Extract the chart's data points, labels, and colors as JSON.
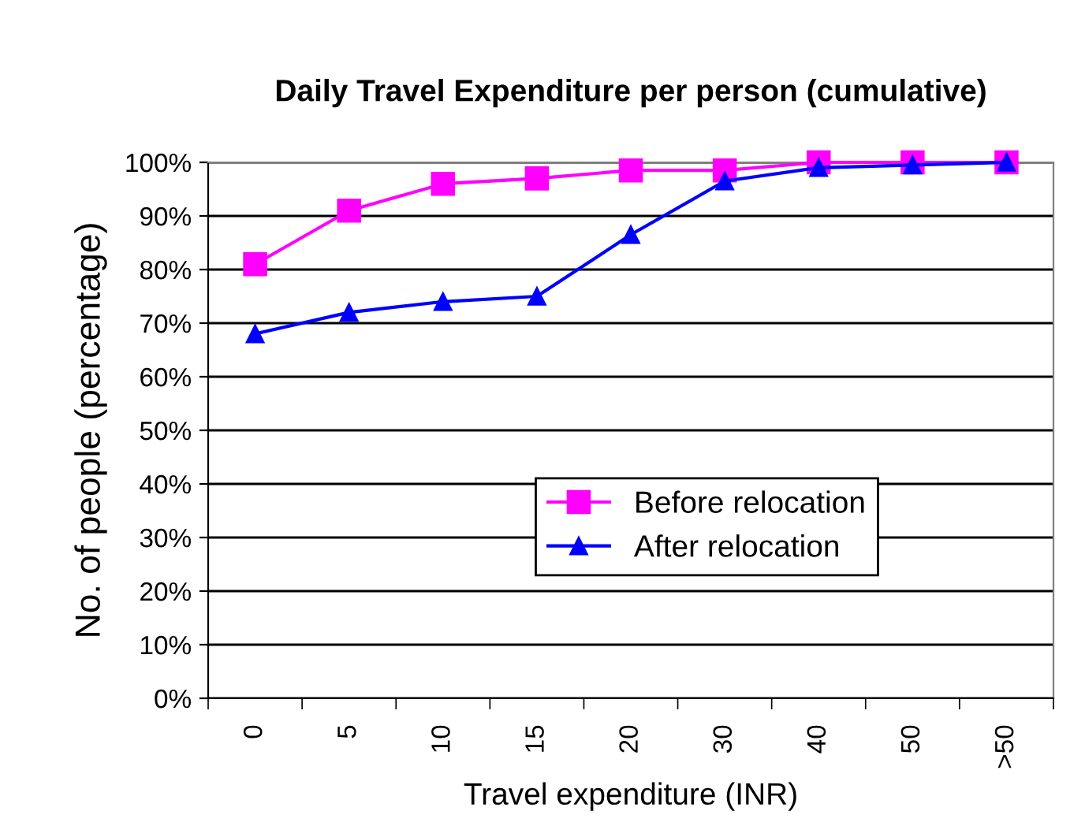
{
  "chart_data": {
    "type": "line",
    "title": "Daily Travel Expenditure per person (cumulative)",
    "xlabel": "Travel expenditure (INR)",
    "ylabel": "No. of people (percentage)",
    "categories": [
      "0",
      "5",
      "10",
      "15",
      "20",
      "30",
      "40",
      "50",
      ">50"
    ],
    "series": [
      {
        "name": "Before relocation",
        "color": "#ff00ff",
        "marker": "square",
        "values": [
          81,
          91,
          96,
          97,
          98.5,
          98.5,
          100,
          100,
          100
        ]
      },
      {
        "name": "After relocation",
        "color": "#0000ff",
        "marker": "triangle",
        "values": [
          68,
          72,
          74,
          75,
          86.5,
          96.5,
          99,
          99.5,
          100
        ]
      }
    ],
    "ylim": [
      0,
      100
    ],
    "yticks": [
      {
        "value": 0,
        "label": "0%"
      },
      {
        "value": 10,
        "label": "10%"
      },
      {
        "value": 20,
        "label": "20%"
      },
      {
        "value": 30,
        "label": "30%"
      },
      {
        "value": 40,
        "label": "40%"
      },
      {
        "value": 50,
        "label": "50%"
      },
      {
        "value": 60,
        "label": "60%"
      },
      {
        "value": 70,
        "label": "70%"
      },
      {
        "value": 80,
        "label": "80%"
      },
      {
        "value": 90,
        "label": "90%"
      },
      {
        "value": 100,
        "label": "100%"
      }
    ],
    "grid": "y",
    "legend": "center",
    "line_style": "solid"
  }
}
